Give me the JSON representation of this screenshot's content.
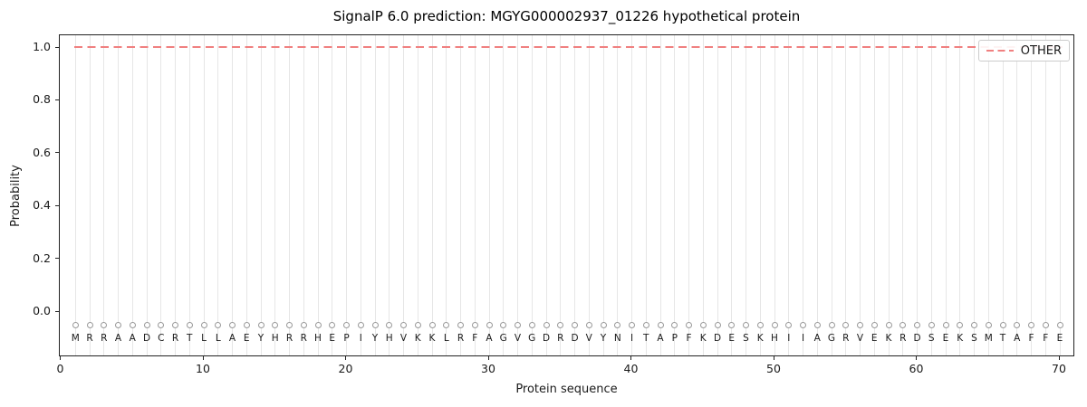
{
  "title": "SignalP 6.0 prediction: MGYG000002937_01226 hypothetical protein",
  "axes": {
    "xlabel": "Protein sequence",
    "ylabel": "Probability",
    "xticks": [
      {
        "label": "0",
        "value": 0
      },
      {
        "label": "10",
        "value": 10
      },
      {
        "label": "20",
        "value": 20
      },
      {
        "label": "30",
        "value": 30
      },
      {
        "label": "40",
        "value": 40
      },
      {
        "label": "50",
        "value": 50
      },
      {
        "label": "60",
        "value": 60
      },
      {
        "label": "70",
        "value": 70
      }
    ],
    "yticks": [
      {
        "label": "0.0",
        "value": 0.0
      },
      {
        "label": "0.2",
        "value": 0.2
      },
      {
        "label": "0.4",
        "value": 0.4
      },
      {
        "label": "0.6",
        "value": 0.6
      },
      {
        "label": "0.8",
        "value": 0.8
      },
      {
        "label": "1.0",
        "value": 1.0
      }
    ]
  },
  "legend": {
    "label": "OTHER"
  },
  "sequence": "MRRAADCRTLLAEYHRRHEPIYHVKKLRFAGVGDRDVYNITAPFKDESKHIIAGRVEKRDSEKSMTAFFE",
  "colors": {
    "line": "#f08080",
    "grid": "#e6e6e6",
    "marker": "#999999",
    "spine": "#222222",
    "text": "#1a1a1a",
    "legend_border": "#cccccc"
  },
  "chart_data": {
    "type": "line",
    "title": "SignalP 6.0 prediction: MGYG000002937_01226 hypothetical protein",
    "xlabel": "Protein sequence",
    "ylabel": "Probability",
    "xlim": [
      -0.5,
      71
    ],
    "ylim": [
      -0.17,
      1.05
    ],
    "xticks": [
      0,
      10,
      20,
      30,
      40,
      50,
      60,
      70
    ],
    "yticks": [
      0.0,
      0.2,
      0.4,
      0.6,
      0.8,
      1.0
    ],
    "grid": "light vertical gridline at every residue position 1-70",
    "legend_position": "upper right",
    "series": [
      {
        "name": "OTHER",
        "linestyle": "dashed",
        "color": "#f08080",
        "x_start": 1,
        "x_end": 70,
        "y_constant": 1.0,
        "note": "constant probability of 1.0 across all 70 residues"
      }
    ],
    "residue_markers": {
      "marker": "o",
      "fill": "white",
      "edge_color": "#999999",
      "y": -0.05,
      "positions": "1-70",
      "labels_y": -0.1
    },
    "sequence": "MRRAADCRTLLAEYHRRHEPIYHVKKLRFAGVGDRDVYNITAPFKDESKHIIAGRVEKRDSEKSMTAFFE"
  }
}
